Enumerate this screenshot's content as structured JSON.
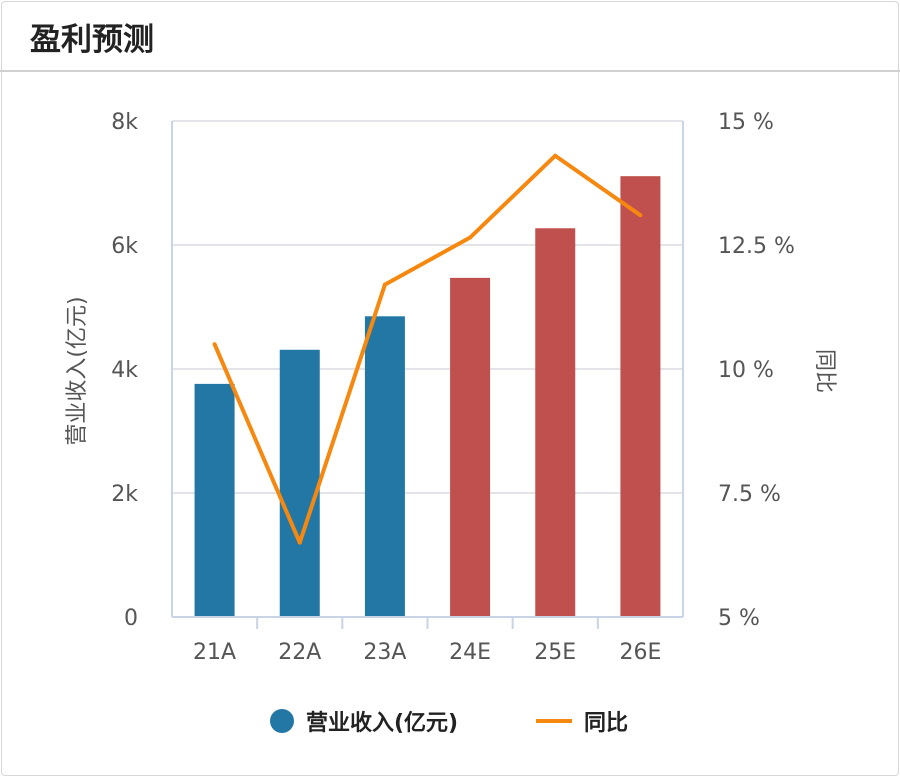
{
  "header": {
    "title": "盈利预测"
  },
  "chart_data": {
    "type": "bar",
    "title": "盈利预测",
    "categories": [
      "21A",
      "22A",
      "23A",
      "24E",
      "25E",
      "26E"
    ],
    "series": [
      {
        "name": "营业收入(亿元)",
        "type": "bar",
        "axis": "left",
        "values": [
          3760,
          4310,
          4850,
          5470,
          6270,
          7110
        ],
        "colors": [
          "#2277a4",
          "#2277a4",
          "#2277a4",
          "#c0504d",
          "#c0504d",
          "#c0504d"
        ]
      },
      {
        "name": "同比",
        "type": "line",
        "axis": "right",
        "unit": "%",
        "values": [
          10.5,
          6.5,
          11.7,
          12.65,
          14.3,
          13.1
        ],
        "color": "#f7880f"
      }
    ],
    "ylabel": "营业收入(亿元)",
    "y2label": "同比",
    "ylim": [
      0,
      8000
    ],
    "y2lim": [
      5,
      15
    ],
    "yticks": [
      "0",
      "2k",
      "4k",
      "6k",
      "8k"
    ],
    "y2ticks": [
      "5 %",
      "7.5 %",
      "10 %",
      "12.5 %",
      "15 %"
    ],
    "grid": true,
    "legend_position": "bottom",
    "legend": [
      {
        "label": "营业收入(亿元)",
        "color": "#2277a4"
      },
      {
        "label": "同比",
        "color": "#f7880f"
      }
    ]
  }
}
